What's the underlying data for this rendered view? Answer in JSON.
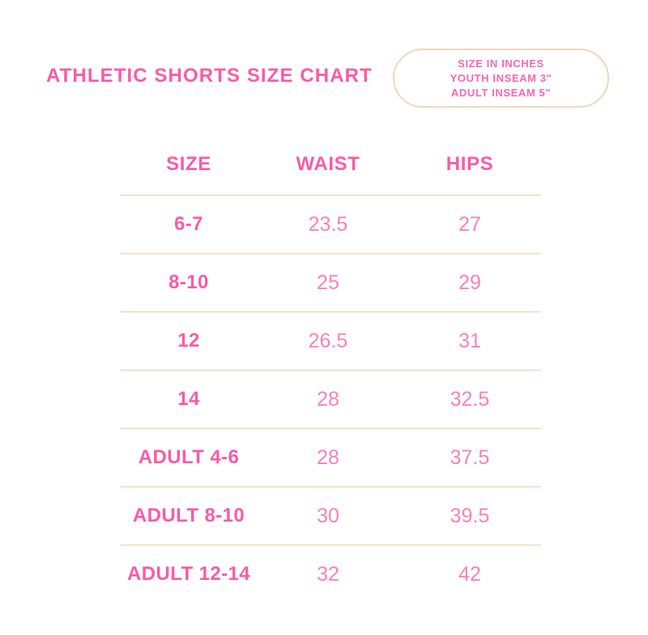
{
  "page": {
    "title": "ATHLETIC SHORTS SIZE CHART",
    "badge": {
      "lines": [
        "SIZE IN INCHES",
        "YOUTH INSEAM 3\"",
        "ADULT INSEAM 5\""
      ]
    },
    "colors": {
      "bold_pink": "#F95BA7",
      "value_pink": "#F981BC",
      "badge_text_pink": "#F966B0",
      "divider_tan": "#F5E2CB",
      "badge_border_tan": "#F0D7BA",
      "background": "#FFFFFF"
    }
  },
  "table": {
    "headers": [
      "SIZE",
      "WAIST",
      "HIPS"
    ],
    "rows": [
      {
        "size": "6-7",
        "waist": "23.5",
        "hips": "27"
      },
      {
        "size": "8-10",
        "waist": "25",
        "hips": "29"
      },
      {
        "size": "12",
        "waist": "26.5",
        "hips": "31"
      },
      {
        "size": "14",
        "waist": "28",
        "hips": "32.5"
      },
      {
        "size": "ADULT 4-6",
        "waist": "28",
        "hips": "37.5"
      },
      {
        "size": "ADULT 8-10",
        "waist": "30",
        "hips": "39.5"
      },
      {
        "size": "ADULT 12-14",
        "waist": "32",
        "hips": "42"
      }
    ]
  }
}
